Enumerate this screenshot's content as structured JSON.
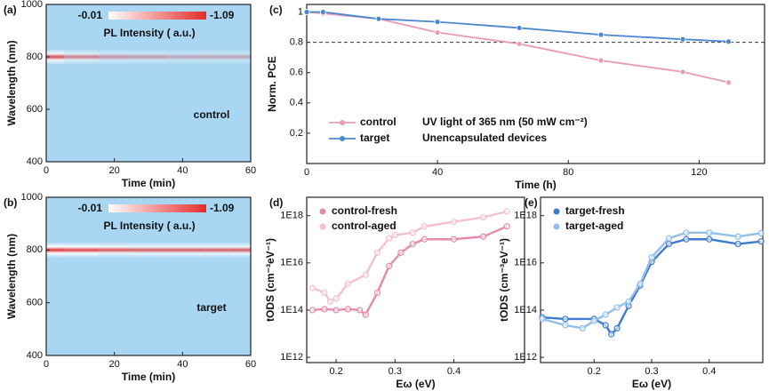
{
  "chart_data": [
    {
      "type": "heatmap",
      "panel_label": "(a)",
      "xlabel": "Time (min)",
      "ylabel": "Wavelength (nm)",
      "annotation": "control",
      "colorbar_label": "PL Intensity ( a.u.)",
      "clim": [
        -0.01,
        -1.09
      ],
      "xlim": [
        0,
        60
      ],
      "ylim": [
        400,
        1000
      ],
      "xticks": [
        0,
        20,
        40,
        60
      ],
      "yticks": [
        400,
        600,
        800,
        1000
      ],
      "peak_wavelength": 800,
      "x": [
        0,
        10,
        20,
        30,
        40,
        50,
        60
      ],
      "values": [
        -0.9,
        -0.6,
        -0.45,
        -0.4,
        -0.35,
        -0.35,
        -0.35
      ]
    },
    {
      "type": "heatmap",
      "panel_label": "(b)",
      "xlabel": "Time (min)",
      "ylabel": "Wavelength (nm)",
      "annotation": "target",
      "colorbar_label": "PL Intensity ( a.u.)",
      "clim": [
        -0.01,
        -1.09
      ],
      "xlim": [
        0,
        60
      ],
      "ylim": [
        400,
        1000
      ],
      "xticks": [
        0,
        20,
        40,
        60
      ],
      "yticks": [
        400,
        600,
        800,
        1000
      ],
      "peak_wavelength": 800,
      "x": [
        0,
        10,
        20,
        30,
        40,
        50,
        60
      ],
      "values": [
        -1.05,
        -0.95,
        -0.85,
        -0.8,
        -0.8,
        -0.8,
        -0.8
      ]
    },
    {
      "type": "line",
      "panel_label": "(c)",
      "xlabel": "Time (h)",
      "ylabel": "Norm. PCE",
      "xlim": [
        0,
        140
      ],
      "ylim": [
        0,
        1.05
      ],
      "xticks": [
        0,
        40,
        80,
        120
      ],
      "yticks": [
        0.2,
        0.4,
        0.6,
        0.8,
        1
      ],
      "reference_line": 0.8,
      "annotations": [
        "UV light of 365 nm (50 mW cm⁻²)",
        "Unencapsulated devices"
      ],
      "x": [
        0,
        5,
        22,
        40,
        65,
        90,
        115,
        129
      ],
      "series": [
        {
          "name": "control",
          "color": "#e99bb5",
          "values": [
            1,
            0.99,
            0.955,
            0.865,
            0.79,
            0.68,
            0.605,
            0.535
          ]
        },
        {
          "name": "target",
          "color": "#4a88cf",
          "values": [
            1,
            1.0,
            0.955,
            0.935,
            0.895,
            0.85,
            0.82,
            0.805
          ]
        }
      ]
    },
    {
      "type": "scatter",
      "panel_label": "(d)",
      "xlabel": "Eω (eV)",
      "ylabel": "tODS (cm⁻³eV⁻¹)",
      "log_y": true,
      "xlim": [
        0.15,
        0.52
      ],
      "ylim": [
        600000000000.0,
        6e+18
      ],
      "xticks": [
        0.2,
        0.3,
        0.4
      ],
      "yticks": [
        {
          "value": 1000000000000.0,
          "label": "1E12"
        },
        {
          "value": 100000000000000.0,
          "label": "1E14"
        },
        {
          "value": 1e+16,
          "label": "1E16"
        },
        {
          "value": 1e+18,
          "label": "1E18"
        }
      ],
      "series": [
        {
          "name": "control-fresh",
          "color": "#e58aa8",
          "x": [
            0.16,
            0.18,
            0.2,
            0.22,
            0.24,
            0.25,
            0.27,
            0.29,
            0.31,
            0.33,
            0.35,
            0.4,
            0.45,
            0.49
          ],
          "values": [
            100000000000000.0,
            110000000000000.0,
            100000000000000.0,
            110000000000000.0,
            100000000000000.0,
            64000000000000.0,
            550000000000000.0,
            7400000000000000.0,
            2.7e+16,
            6.3e+16,
            1e+17,
            1e+17,
            1.3e+17,
            3.5e+17
          ]
        },
        {
          "name": "control-aged",
          "color": "#f4bfcf",
          "x": [
            0.16,
            0.18,
            0.19,
            0.2,
            0.22,
            0.25,
            0.27,
            0.29,
            0.3,
            0.33,
            0.35,
            0.4,
            0.45,
            0.49
          ],
          "values": [
            850000000000000.0,
            550000000000000.0,
            230000000000000.0,
            310000000000000.0,
            1300000000000000.0,
            3100000000000000.0,
            2.7e+16,
            1.1e+17,
            1.5e+17,
            1.9e+17,
            3.5e+17,
            5.5e+17,
            8.5e+17,
            1.5e+18
          ]
        }
      ]
    },
    {
      "type": "scatter",
      "panel_label": "(e)",
      "xlabel": "Eω (eV)",
      "ylabel": "tODS (cm⁻³eV⁻¹)",
      "log_y": true,
      "xlim": [
        0.107,
        0.493
      ],
      "ylim": [
        600000000000.0,
        6e+18
      ],
      "xticks": [
        0.2,
        0.3,
        0.4
      ],
      "yticks": [
        {
          "value": 1000000000000.0,
          "label": "1E12"
        },
        {
          "value": 100000000000000.0,
          "label": "1E14"
        },
        {
          "value": 1e+16,
          "label": "1E16"
        },
        {
          "value": 1e+18,
          "label": "1E18"
        }
      ],
      "series": [
        {
          "name": "target-fresh",
          "color": "#3d7ccc",
          "x": [
            0.11,
            0.15,
            0.2,
            0.22,
            0.23,
            0.24,
            0.26,
            0.28,
            0.3,
            0.33,
            0.36,
            0.4,
            0.45,
            0.49
          ],
          "values": [
            49000000000000.0,
            42000000000000.0,
            42000000000000.0,
            23000000000000.0,
            9500000000000.0,
            17000000000000.0,
            150000000000000.0,
            1100000000000000.0,
            1.1e+16,
            6.3e+16,
            1e+17,
            1e+17,
            6.3e+16,
            8.1e+16
          ]
        },
        {
          "name": "target-aged",
          "color": "#92bfe9",
          "x": [
            0.11,
            0.15,
            0.18,
            0.2,
            0.22,
            0.24,
            0.26,
            0.28,
            0.3,
            0.33,
            0.36,
            0.4,
            0.45,
            0.49
          ],
          "values": [
            42000000000000.0,
            23000000000000.0,
            17000000000000.0,
            35000000000000.0,
            64000000000000.0,
            130000000000000.0,
            230000000000000.0,
            1300000000000000.0,
            1.7e+16,
            1.1e+17,
            1.9e+17,
            1.9e+17,
            1.3e+17,
            1.8e+17
          ]
        }
      ]
    }
  ]
}
